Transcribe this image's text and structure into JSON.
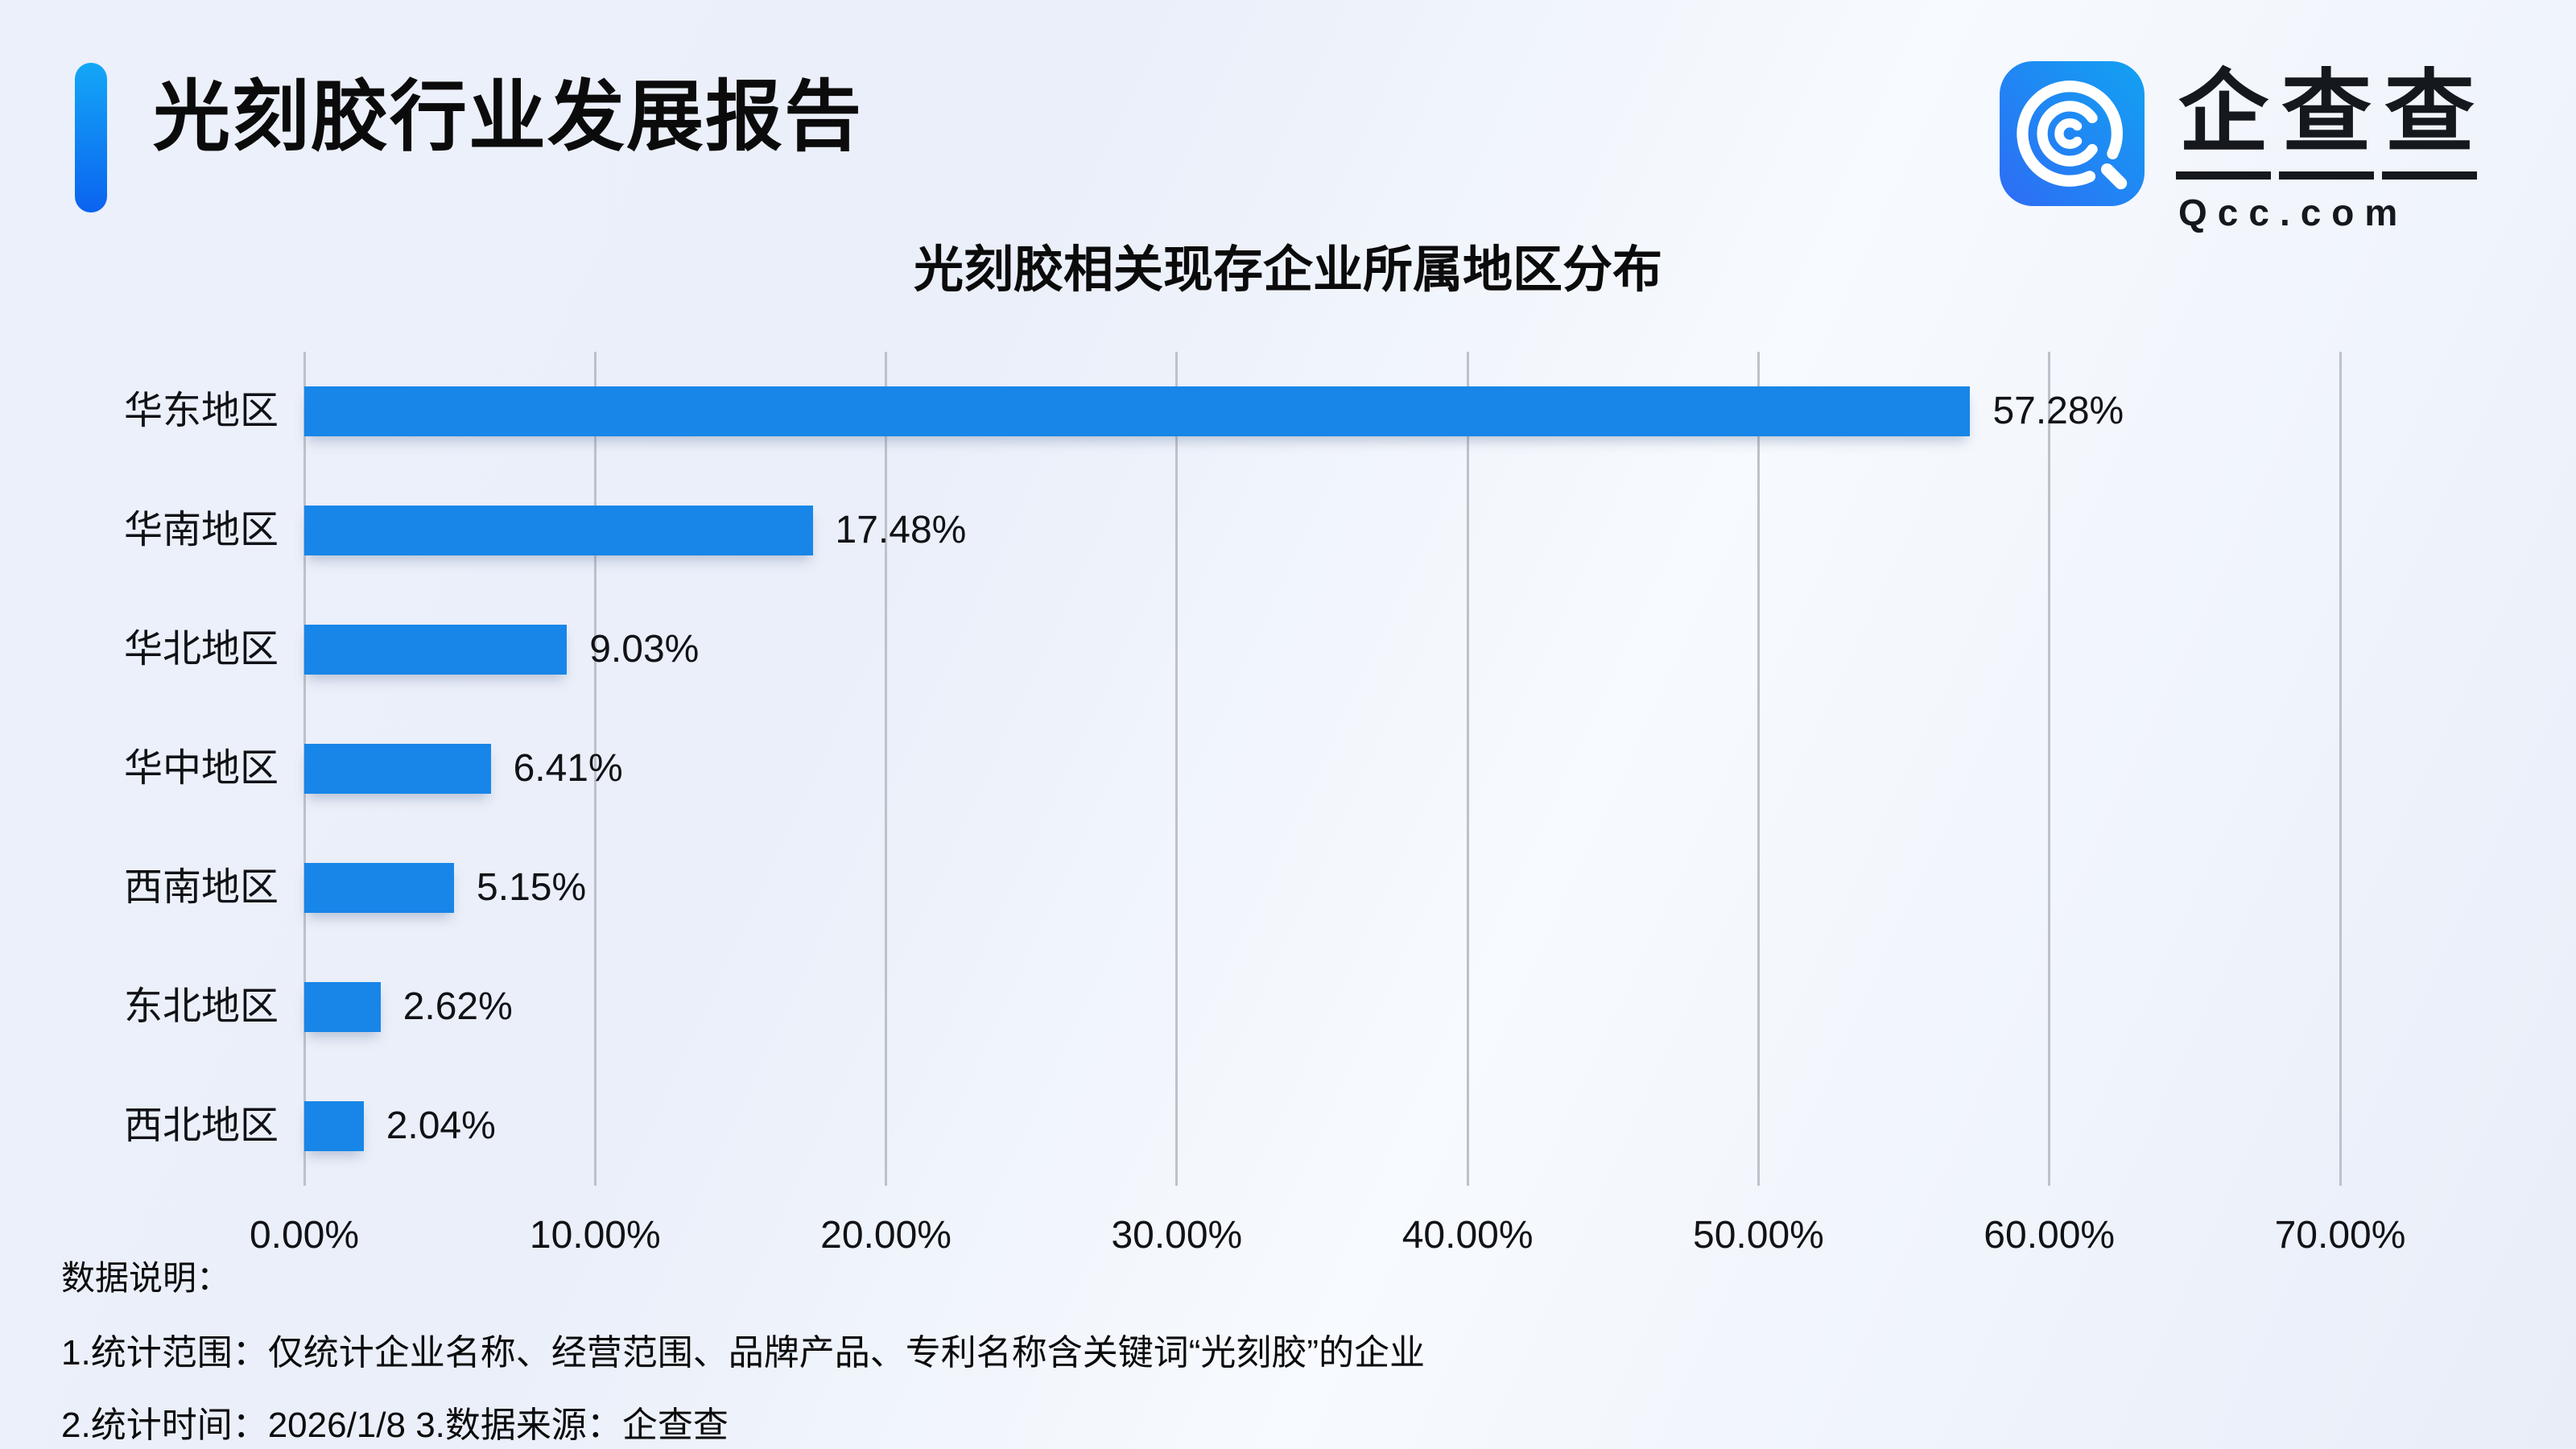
{
  "header": {
    "title": "光刻胶行业发展报告",
    "logo": {
      "icon": "qcc-logo-icon",
      "chars": [
        "企",
        "查",
        "查"
      ],
      "domain": "Qcc.com"
    }
  },
  "chart_data": {
    "type": "bar",
    "orientation": "horizontal",
    "title": "光刻胶相关现存企业所属地区分布",
    "categories": [
      "华东地区",
      "华南地区",
      "华北地区",
      "华中地区",
      "西南地区",
      "东北地区",
      "西北地区"
    ],
    "values": [
      57.28,
      17.48,
      9.03,
      6.41,
      5.15,
      2.62,
      2.04
    ],
    "value_labels": [
      "57.28%",
      "17.48%",
      "9.03%",
      "6.41%",
      "5.15%",
      "2.62%",
      "2.04%"
    ],
    "xlabel": "",
    "ylabel": "",
    "xlim": [
      0,
      70
    ],
    "x_ticks": [
      "0.00%",
      "10.00%",
      "20.00%",
      "30.00%",
      "40.00%",
      "50.00%",
      "60.00%",
      "70.00%"
    ],
    "grid": "vertical",
    "legend": "none",
    "bar_color": "#1786E8"
  },
  "footer": {
    "heading": "数据说明：",
    "notes": [
      "1.统计范围：仅统计企业名称、经营范围、品牌产品、专利名称含关键词“光刻胶”的企业",
      "2.统计时间：2026/1/8  3.数据来源：企查查"
    ]
  },
  "colors": {
    "bar": "#1786E8",
    "accent_top": "#14A7F7",
    "accent_bottom": "#0B63EF",
    "logo_gradient_left": "#2E6CF5",
    "logo_gradient_right": "#12A2F2",
    "gridline": "#BDC1C9",
    "text": "#111216"
  }
}
